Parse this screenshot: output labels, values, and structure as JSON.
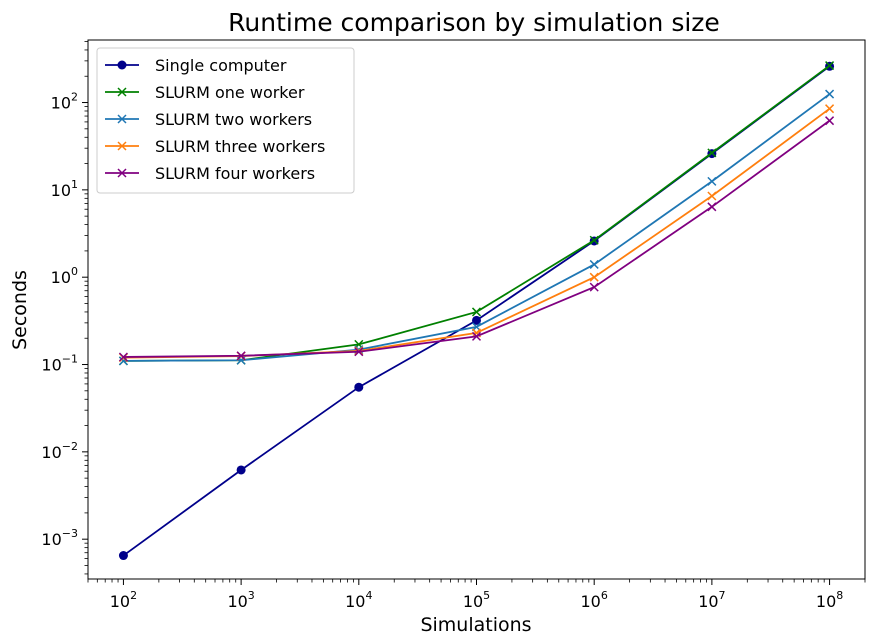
{
  "chart_data": {
    "type": "line",
    "title": "Runtime comparison by simulation size",
    "xlabel": "Simulations",
    "ylabel": "Seconds",
    "xscale": "log",
    "yscale": "log",
    "xlim": [
      50,
      200000000
    ],
    "ylim": [
      0.00035,
      520
    ],
    "grid": false,
    "legend_position": "top-left",
    "x": [
      100,
      1000,
      10000,
      100000,
      1000000,
      10000000,
      100000000
    ],
    "x_ticks": [
      {
        "value": 100,
        "base": "10",
        "exp": "2"
      },
      {
        "value": 1000,
        "base": "10",
        "exp": "3"
      },
      {
        "value": 10000,
        "base": "10",
        "exp": "4"
      },
      {
        "value": 100000,
        "base": "10",
        "exp": "5"
      },
      {
        "value": 1000000,
        "base": "10",
        "exp": "6"
      },
      {
        "value": 10000000,
        "base": "10",
        "exp": "7"
      },
      {
        "value": 100000000,
        "base": "10",
        "exp": "8"
      }
    ],
    "y_ticks": [
      {
        "value": 0.001,
        "base": "10",
        "exp": "−3"
      },
      {
        "value": 0.01,
        "base": "10",
        "exp": "−2"
      },
      {
        "value": 0.1,
        "base": "10",
        "exp": "−1"
      },
      {
        "value": 1,
        "base": "10",
        "exp": "0"
      },
      {
        "value": 10,
        "base": "10",
        "exp": "1"
      },
      {
        "value": 100,
        "base": "10",
        "exp": "2"
      }
    ],
    "series": [
      {
        "name": "Single computer",
        "color": "#00008b",
        "marker": "circle",
        "values": [
          0.00065,
          0.0062,
          0.055,
          0.32,
          2.6,
          26,
          260
        ]
      },
      {
        "name": "SLURM one worker",
        "color": "#008000",
        "marker": "x",
        "values": [
          0.11,
          0.112,
          0.17,
          0.4,
          2.65,
          26.5,
          265
        ]
      },
      {
        "name": "SLURM two workers",
        "color": "#1f77b4",
        "marker": "x",
        "values": [
          0.11,
          0.112,
          0.148,
          0.27,
          1.4,
          12.5,
          125
        ]
      },
      {
        "name": "SLURM three workers",
        "color": "#ff7f0e",
        "marker": "x",
        "values": [
          0.12,
          0.125,
          0.143,
          0.23,
          1.0,
          8.5,
          85
        ]
      },
      {
        "name": "SLURM four workers",
        "color": "#800080",
        "marker": "x",
        "values": [
          0.122,
          0.126,
          0.14,
          0.21,
          0.77,
          6.4,
          62
        ]
      }
    ]
  }
}
